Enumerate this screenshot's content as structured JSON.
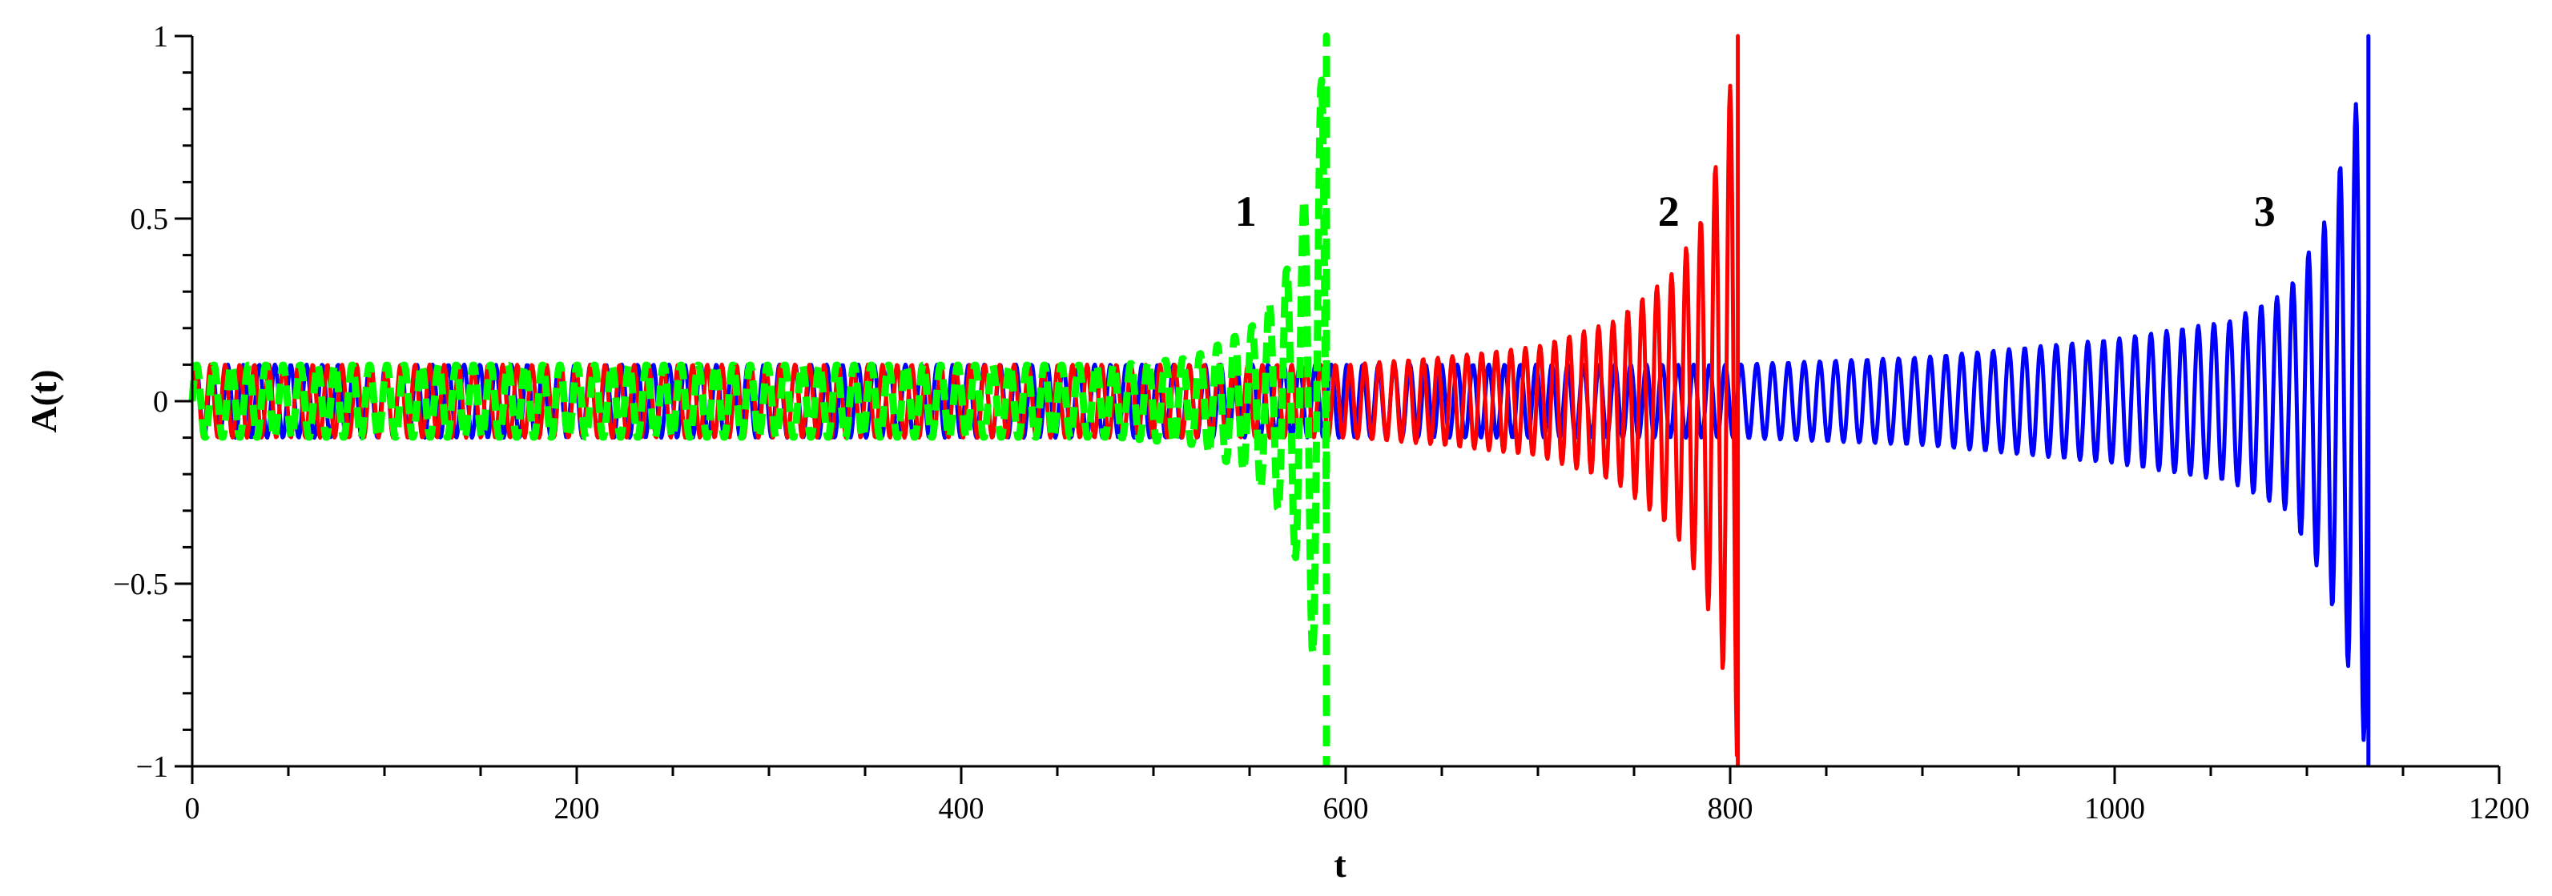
{
  "chart_data": {
    "type": "line",
    "title": "",
    "xlabel": "t",
    "ylabel": "A(t)",
    "xlim": [
      0,
      1200
    ],
    "ylim": [
      -1,
      1
    ],
    "x_ticks": [
      0,
      200,
      400,
      600,
      800,
      1000,
      1200
    ],
    "x_tick_labels": [
      "0",
      "200",
      "400",
      "600",
      "800",
      "1000",
      "1200"
    ],
    "y_ticks": [
      1,
      0.5,
      0,
      -0.5,
      -1
    ],
    "y_tick_labels": [
      "1",
      "0.5",
      "0",
      "−0.5",
      "−1"
    ],
    "grid": false,
    "annotations": [
      {
        "text": "1",
        "x": 548,
        "y": 0.48
      },
      {
        "text": "2",
        "x": 768,
        "y": 0.48
      },
      {
        "text": "3",
        "x": 1078,
        "y": 0.48
      }
    ],
    "series": [
      {
        "label": "3",
        "color": "#0000ff",
        "style": "solid",
        "base_amplitude": 0.1,
        "period": 8.2,
        "t_end": 1132,
        "growth_points": [
          [
            0,
            0.1
          ],
          [
            800,
            0.1
          ],
          [
            900,
            0.12
          ],
          [
            1000,
            0.17
          ],
          [
            1060,
            0.22
          ],
          [
            1090,
            0.3
          ],
          [
            1110,
            0.5
          ],
          [
            1125,
            0.8
          ],
          [
            1132,
            1.0
          ]
        ]
      },
      {
        "label": "2",
        "color": "#ff0000",
        "style": "solid",
        "base_amplitude": 0.1,
        "period": 7.6,
        "t_end": 804,
        "growth_points": [
          [
            0,
            0.1
          ],
          [
            600,
            0.1
          ],
          [
            650,
            0.12
          ],
          [
            700,
            0.15
          ],
          [
            740,
            0.22
          ],
          [
            770,
            0.35
          ],
          [
            785,
            0.5
          ],
          [
            795,
            0.7
          ],
          [
            804,
            1.0
          ]
        ]
      },
      {
        "label": "1",
        "color": "#00ff00",
        "style": "dashed",
        "base_amplitude": 0.1,
        "period": 9.0,
        "t_end": 590,
        "growth_points": [
          [
            0,
            0.1
          ],
          [
            480,
            0.1
          ],
          [
            520,
            0.12
          ],
          [
            550,
            0.2
          ],
          [
            565,
            0.3
          ],
          [
            575,
            0.45
          ],
          [
            583,
            0.7
          ],
          [
            590,
            1.0
          ]
        ]
      }
    ]
  }
}
